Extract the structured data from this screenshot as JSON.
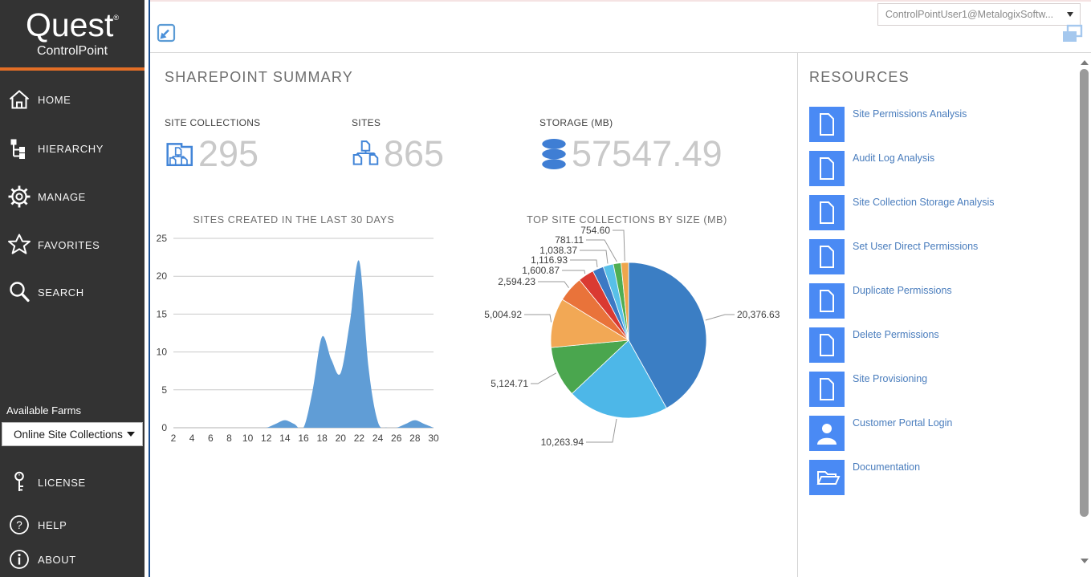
{
  "topbar": {
    "user_dropdown": "ControlPointUser1@MetalogixSoftw..."
  },
  "sidebar": {
    "logo": "Quest",
    "logo_mark": "®",
    "product": "ControlPoint",
    "nav": [
      {
        "label": "HOME",
        "icon": "home-icon"
      },
      {
        "label": "HIERARCHY",
        "icon": "hierarchy-icon"
      },
      {
        "label": "MANAGE",
        "icon": "gear-icon"
      },
      {
        "label": "FAVORITES",
        "icon": "star-icon"
      },
      {
        "label": "SEARCH",
        "icon": "search-icon"
      }
    ],
    "available_farms_label": "Available Farms",
    "farm_selected": "Online Site Collections",
    "footer_nav": [
      {
        "label": "LICENSE",
        "icon": "key-icon"
      },
      {
        "label": "HELP",
        "icon": "question-icon"
      },
      {
        "label": "ABOUT",
        "icon": "info-icon"
      }
    ]
  },
  "summary": {
    "title": "SHAREPOINT SUMMARY",
    "metrics": [
      {
        "label": "SITE COLLECTIONS",
        "value": "295",
        "icon": "site-collections-icon"
      },
      {
        "label": "SITES",
        "value": "865",
        "icon": "sites-icon"
      },
      {
        "label": "STORAGE (MB)",
        "value": "57547.49",
        "icon": "database-icon"
      }
    ]
  },
  "resources": {
    "title": "RESOURCES",
    "items": [
      {
        "label": "Site Permissions Analysis",
        "icon": "document-icon"
      },
      {
        "label": "Audit Log Analysis",
        "icon": "document-icon"
      },
      {
        "label": "Site Collection Storage Analysis",
        "icon": "document-icon"
      },
      {
        "label": "Set User Direct Permissions",
        "icon": "document-icon"
      },
      {
        "label": "Duplicate Permissions",
        "icon": "document-icon"
      },
      {
        "label": "Delete Permissions",
        "icon": "document-icon"
      },
      {
        "label": "Site Provisioning",
        "icon": "document-icon"
      },
      {
        "label": "Customer Portal Login",
        "icon": "person-icon"
      },
      {
        "label": "Documentation",
        "icon": "folder-icon"
      }
    ]
  },
  "chart_data": [
    {
      "type": "area",
      "title": "SITES CREATED IN THE LAST 30 DAYS",
      "x": [
        2,
        3,
        4,
        5,
        6,
        7,
        8,
        9,
        10,
        11,
        12,
        13,
        14,
        15,
        16,
        17,
        18,
        19,
        20,
        21,
        22,
        23,
        24,
        25,
        26,
        27,
        28,
        29,
        30
      ],
      "series": [
        {
          "name": "Sites Created",
          "values": [
            0,
            0,
            0,
            0,
            0,
            0,
            0,
            0,
            0,
            0,
            0,
            0.5,
            1,
            0.5,
            0,
            5,
            12,
            9,
            7.2,
            14,
            22,
            8,
            0.8,
            0,
            0,
            0.5,
            1,
            0.5,
            0
          ]
        }
      ],
      "x_ticks": [
        2,
        4,
        6,
        8,
        10,
        12,
        14,
        16,
        18,
        20,
        22,
        24,
        26,
        28,
        30
      ],
      "y_ticks": [
        0,
        5,
        10,
        15,
        20,
        25
      ],
      "ylim": [
        0,
        25
      ],
      "grid": true,
      "legend": "none",
      "color": "#609dd6"
    },
    {
      "type": "pie",
      "title": "TOP SITE COLLECTIONS BY SIZE (MB)",
      "values": [
        20376.63,
        10263.94,
        5124.71,
        5004.92,
        2594.23,
        1600.87,
        1116.93,
        1038.37,
        781.11,
        754.6
      ],
      "labels": [
        "20,376.63",
        "10,263.94",
        "5,124.71",
        "5,004.92",
        "2,594.23",
        "1,600.87",
        "1,116.93",
        "1,038.37",
        "781.11",
        "754.60"
      ],
      "colors": [
        "#3b7ec4",
        "#4db7e8",
        "#4aa64e",
        "#f2a855",
        "#e9733a",
        "#da3a32",
        "#3c79c4",
        "#58c0e8",
        "#4fae53",
        "#efa64c"
      ],
      "legend": "none"
    }
  ]
}
